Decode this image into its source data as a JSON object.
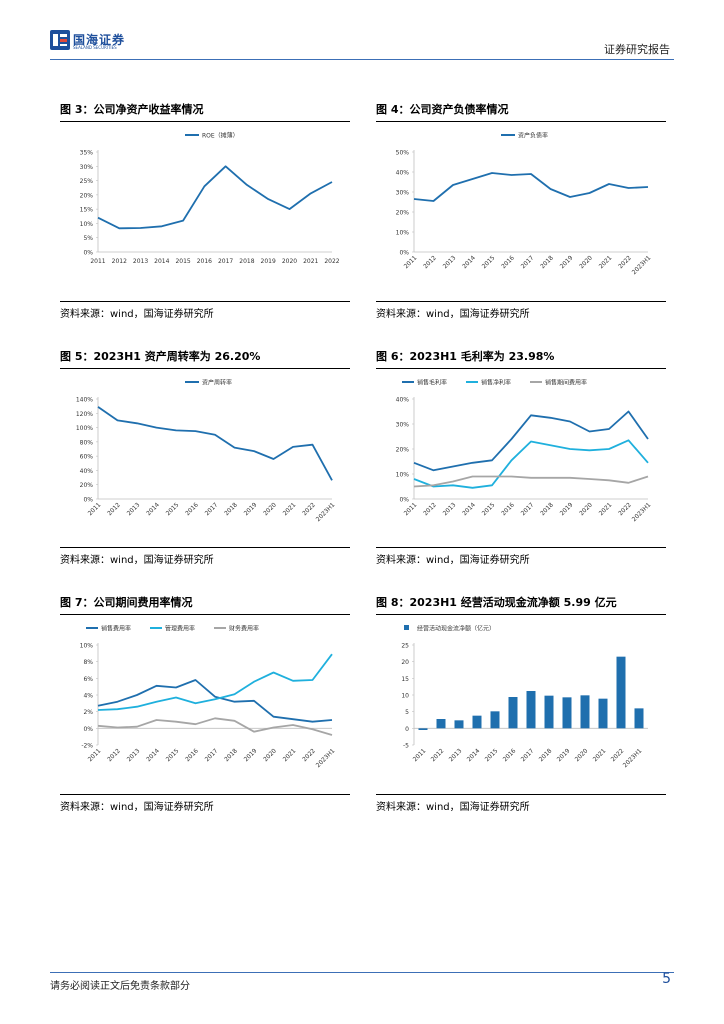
{
  "header": {
    "logo_name": "国海证券",
    "logo_en": "SEALAND SECURITIES",
    "report_type": "证券研究报告"
  },
  "footer": {
    "disclaimer": "请务必阅读正文后免责条款部分",
    "page_number": "5"
  },
  "colors": {
    "primary": "#1f6fae",
    "secondary": "#1fb0dd",
    "tertiary": "#a6a6a6",
    "rule": "#3c6fb6"
  },
  "figures": [
    {
      "title": "图 3：公司净资产收益率情况",
      "source": "资料来源：wind，国海证券研究所",
      "chart_data": {
        "type": "line",
        "categories": [
          "2011",
          "2012",
          "2013",
          "2014",
          "2015",
          "2016",
          "2017",
          "2018",
          "2019",
          "2020",
          "2021",
          "2022"
        ],
        "ylim": [
          0,
          35
        ],
        "yticks": [
          0,
          5,
          10,
          15,
          20,
          25,
          30,
          35
        ],
        "yfmt": "%",
        "series": [
          {
            "name": "ROE（摊薄）",
            "color": "#1f6fae",
            "values": [
              12,
              8.3,
              8.4,
              9,
              11,
              23,
              30,
              23.5,
              18.5,
              15,
              20.5,
              24.5
            ]
          }
        ],
        "legend": "top-center"
      }
    },
    {
      "title": "图 4：公司资产负债率情况",
      "source": "资料来源：wind，国海证券研究所",
      "chart_data": {
        "type": "line",
        "categories": [
          "2011",
          "2012",
          "2013",
          "2014",
          "2015",
          "2016",
          "2017",
          "2018",
          "2019",
          "2020",
          "2021",
          "2022",
          "2023H1"
        ],
        "ylim": [
          0,
          50
        ],
        "yticks": [
          0,
          10,
          20,
          30,
          40,
          50
        ],
        "yfmt": "%",
        "series": [
          {
            "name": "资产负债率",
            "color": "#1f6fae",
            "values": [
              26.5,
              25.5,
              33.5,
              36.5,
              39.5,
              38.5,
              39,
              31.5,
              27.5,
              29.5,
              34,
              32,
              32.5
            ]
          }
        ],
        "legend": "top-center"
      }
    },
    {
      "title": "图 5：2023H1 资产周转率为 26.20%",
      "source": "资料来源：wind，国海证券研究所",
      "chart_data": {
        "type": "line",
        "categories": [
          "2011",
          "2012",
          "2013",
          "2014",
          "2015",
          "2016",
          "2017",
          "2018",
          "2019",
          "2020",
          "2021",
          "2022",
          "2023H1"
        ],
        "ylim": [
          0,
          140
        ],
        "yticks": [
          0,
          20,
          40,
          60,
          80,
          100,
          120,
          140
        ],
        "yfmt": "%",
        "series": [
          {
            "name": "资产周转率",
            "color": "#1f6fae",
            "values": [
              129,
              110,
              106,
              100,
              96,
              95,
              90,
              72,
              67,
              56,
              73,
              76,
              26.2
            ]
          }
        ],
        "legend": "top-center"
      }
    },
    {
      "title": "图 6：2023H1 毛利率为 23.98%",
      "source": "资料来源：wind，国海证券研究所",
      "chart_data": {
        "type": "line",
        "categories": [
          "2011",
          "2012",
          "2013",
          "2014",
          "2015",
          "2016",
          "2017",
          "2018",
          "2019",
          "2020",
          "2021",
          "2022",
          "2023H1"
        ],
        "ylim": [
          0,
          40
        ],
        "yticks": [
          0,
          10,
          20,
          30,
          40
        ],
        "yfmt": "%",
        "series": [
          {
            "name": "销售毛利率",
            "color": "#1f6fae",
            "values": [
              14.5,
              11.5,
              13,
              14.5,
              15.5,
              24,
              33.5,
              32.5,
              31,
              27,
              28,
              35,
              24
            ]
          },
          {
            "name": "销售净利率",
            "color": "#1fb0dd",
            "values": [
              8,
              5,
              5.5,
              4.5,
              5.5,
              15.5,
              23,
              21.5,
              20,
              19.5,
              20,
              23.5,
              14.5
            ]
          },
          {
            "name": "销售期间费用率",
            "color": "#a6a6a6",
            "values": [
              5,
              5.5,
              7,
              9,
              9,
              9,
              8.5,
              8.5,
              8.5,
              8,
              7.5,
              6.5,
              9
            ]
          }
        ],
        "legend": "top-left"
      }
    },
    {
      "title": "图 7：公司期间费用率情况",
      "source": "资料来源：wind，国海证券研究所",
      "chart_data": {
        "type": "line",
        "categories": [
          "2011",
          "2012",
          "2013",
          "2014",
          "2015",
          "2016",
          "2017",
          "2018",
          "2019",
          "2020",
          "2021",
          "2022",
          "2023H1"
        ],
        "ylim": [
          -2,
          10
        ],
        "yticks": [
          -2,
          0,
          2,
          4,
          6,
          8,
          10
        ],
        "yfmt": "%",
        "series": [
          {
            "name": "销售费用率",
            "color": "#1f6fae",
            "values": [
              2.7,
              3.2,
              4,
              5.1,
              4.9,
              5.8,
              3.8,
              3.2,
              3.3,
              1.4,
              1.1,
              0.8,
              1
            ]
          },
          {
            "name": "管理费用率",
            "color": "#1fb0dd",
            "values": [
              2.2,
              2.3,
              2.6,
              3.2,
              3.7,
              3,
              3.5,
              4.1,
              5.6,
              6.7,
              5.7,
              5.8,
              8.9
            ]
          },
          {
            "name": "财务费用率",
            "color": "#a6a6a6",
            "values": [
              0.3,
              0.1,
              0.2,
              1,
              0.8,
              0.5,
              1.2,
              0.9,
              -0.4,
              0.1,
              0.4,
              -0.1,
              -0.8
            ]
          }
        ],
        "legend": "top-left"
      }
    },
    {
      "title": "图 8：2023H1 经营活动现金流净额 5.99 亿元",
      "source": "资料来源：wind，国海证券研究所",
      "chart_data": {
        "type": "bar",
        "categories": [
          "2011",
          "2012",
          "2013",
          "2014",
          "2015",
          "2016",
          "2017",
          "2018",
          "2019",
          "2020",
          "2021",
          "2022",
          "2023H1"
        ],
        "ylim": [
          -5,
          25
        ],
        "yticks": [
          -5,
          0,
          5,
          10,
          15,
          20,
          25
        ],
        "yfmt": "",
        "series": [
          {
            "name": "经营活动现金流净额（亿元）",
            "color": "#1f6fae",
            "values": [
              -0.5,
              2.8,
              2.4,
              3.8,
              5.1,
              9.4,
              11.2,
              9.8,
              9.3,
              9.9,
              8.9,
              21.5,
              5.99
            ]
          }
        ],
        "legend": "top-left"
      }
    }
  ]
}
